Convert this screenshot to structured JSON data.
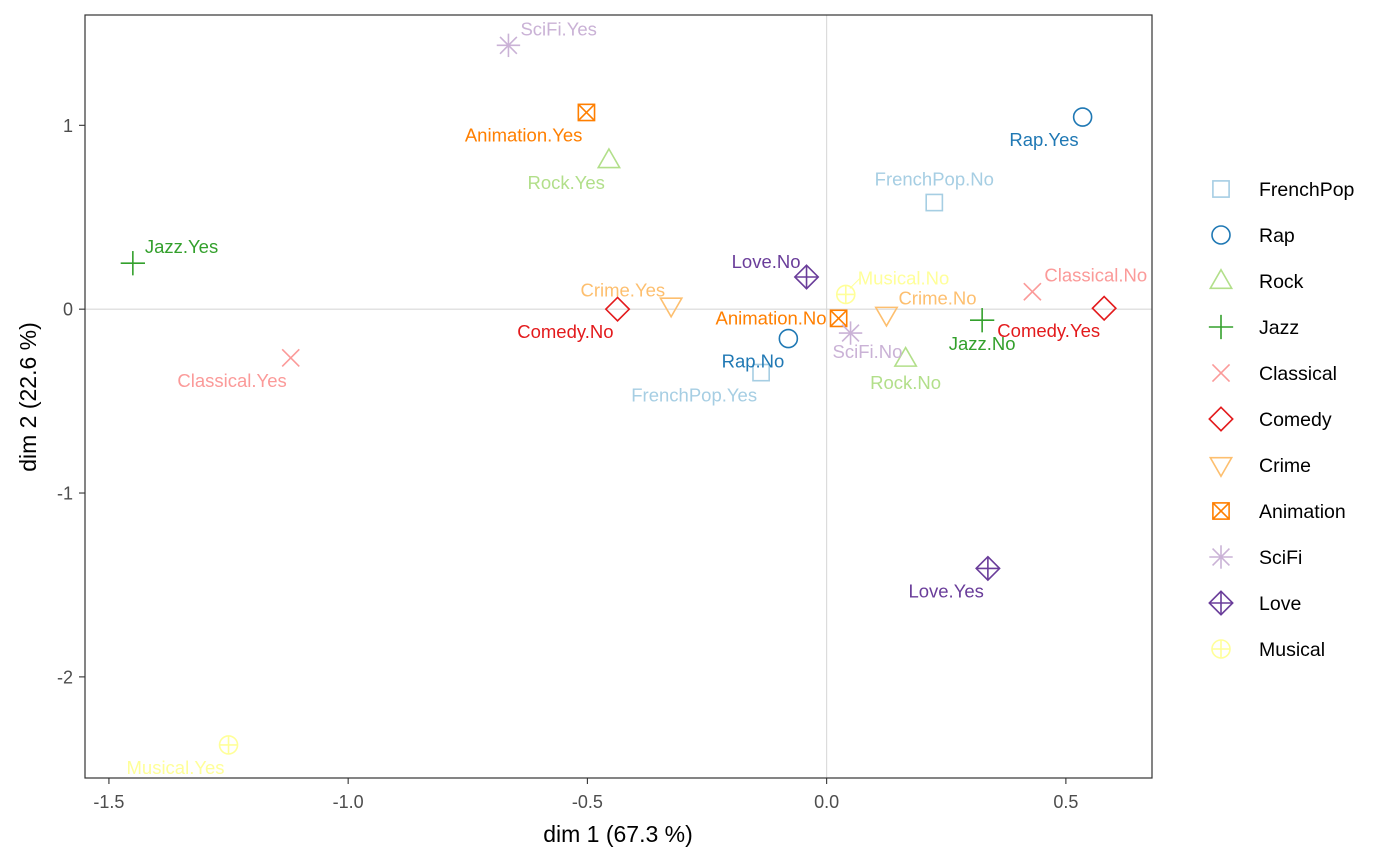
{
  "chart_data": {
    "type": "scatter",
    "title": "",
    "xlabel": "dim 1 (67.3 %)",
    "ylabel": "dim 2 (22.6 %)",
    "xlim": [
      -1.55,
      0.68
    ],
    "ylim": [
      -2.55,
      1.6
    ],
    "xticks": [
      -1.5,
      -1.0,
      -0.5,
      0.0,
      0.5
    ],
    "xtick_labels": [
      "-1.5",
      "-1.0",
      "-0.5",
      "0.0",
      "0.5"
    ],
    "yticks": [
      -2,
      -1,
      0,
      1
    ],
    "ytick_labels": [
      "-2",
      "-1",
      "0",
      "1"
    ],
    "grid": false,
    "reference_lines": {
      "x": 0,
      "y": 0
    },
    "legend_position": "right",
    "groups": [
      {
        "name": "FrenchPop",
        "shape": "square",
        "color": "#a6cee3"
      },
      {
        "name": "Rap",
        "shape": "circle",
        "color": "#1f78b4"
      },
      {
        "name": "Rock",
        "shape": "triangle-up",
        "color": "#b2df8a"
      },
      {
        "name": "Jazz",
        "shape": "plus",
        "color": "#33a02c"
      },
      {
        "name": "Classical",
        "shape": "cross",
        "color": "#fb9a99"
      },
      {
        "name": "Comedy",
        "shape": "diamond",
        "color": "#e31a1c"
      },
      {
        "name": "Crime",
        "shape": "triangle-down",
        "color": "#fdbf6f"
      },
      {
        "name": "Animation",
        "shape": "square-cross",
        "color": "#ff7f00"
      },
      {
        "name": "SciFi",
        "shape": "asterisk",
        "color": "#cab2d6"
      },
      {
        "name": "Love",
        "shape": "diamond-plus",
        "color": "#6a3d9a"
      },
      {
        "name": "Musical",
        "shape": "circle-plus",
        "color": "#ffff99"
      }
    ],
    "points": [
      {
        "label": "FrenchPop.No",
        "group": "FrenchPop",
        "x": 0.225,
        "y": 0.58,
        "anchor": "above"
      },
      {
        "label": "FrenchPop.Yes",
        "group": "FrenchPop",
        "x": -0.137,
        "y": -0.345,
        "anchor": "below-left"
      },
      {
        "label": "Rap.No",
        "group": "Rap",
        "x": -0.08,
        "y": -0.16,
        "anchor": "below-left"
      },
      {
        "label": "Rap.Yes",
        "group": "Rap",
        "x": 0.535,
        "y": 1.045,
        "anchor": "below-left"
      },
      {
        "label": "Rock.No",
        "group": "Rock",
        "x": 0.165,
        "y": -0.27,
        "anchor": "below"
      },
      {
        "label": "Rock.Yes",
        "group": "Rock",
        "x": -0.455,
        "y": 0.81,
        "anchor": "below-left"
      },
      {
        "label": "Jazz.No",
        "group": "Jazz",
        "x": 0.325,
        "y": -0.06,
        "anchor": "below"
      },
      {
        "label": "Jazz.Yes",
        "group": "Jazz",
        "x": -1.45,
        "y": 0.25,
        "anchor": "above-right"
      },
      {
        "label": "Classical.No",
        "group": "Classical",
        "x": 0.43,
        "y": 0.095,
        "anchor": "above-right"
      },
      {
        "label": "Classical.Yes",
        "group": "Classical",
        "x": -1.12,
        "y": -0.265,
        "anchor": "below-left"
      },
      {
        "label": "Comedy.No",
        "group": "Comedy",
        "x": -0.437,
        "y": 0.0,
        "anchor": "below-left"
      },
      {
        "label": "Comedy.Yes",
        "group": "Comedy",
        "x": 0.58,
        "y": 0.005,
        "anchor": "below-left"
      },
      {
        "label": "Crime.No",
        "group": "Crime",
        "x": 0.125,
        "y": -0.03,
        "anchor": "above-right"
      },
      {
        "label": "Crime.Yes",
        "group": "Crime",
        "x": -0.325,
        "y": 0.02,
        "anchor": "above-left"
      },
      {
        "label": "Animation.No",
        "group": "Animation",
        "x": 0.025,
        "y": -0.05,
        "anchor": "left"
      },
      {
        "label": "Animation.Yes",
        "group": "Animation",
        "x": -0.502,
        "y": 1.07,
        "anchor": "below-left"
      },
      {
        "label": "SciFi.No",
        "group": "SciFi",
        "x": 0.05,
        "y": -0.13,
        "anchor": "below-right"
      },
      {
        "label": "SciFi.Yes",
        "group": "SciFi",
        "x": -0.665,
        "y": 1.435,
        "anchor": "above-right"
      },
      {
        "label": "Love.No",
        "group": "Love",
        "x": -0.042,
        "y": 0.175,
        "anchor": "above-left"
      },
      {
        "label": "Love.Yes",
        "group": "Love",
        "x": 0.337,
        "y": -1.41,
        "anchor": "below-left"
      },
      {
        "label": "Musical.No",
        "group": "Musical",
        "x": 0.04,
        "y": 0.08,
        "anchor": "above-right"
      },
      {
        "label": "Musical.Yes",
        "group": "Musical",
        "x": -1.25,
        "y": -2.37,
        "anchor": "below-left"
      }
    ]
  }
}
